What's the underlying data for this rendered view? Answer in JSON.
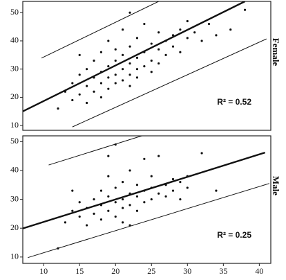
{
  "chart_data": [
    {
      "type": "scatter",
      "label": "Female",
      "annotation": "R² = 0.52",
      "xlim": [
        7.1,
        41.6
      ],
      "ylim": [
        8.3,
        54
      ],
      "yticks": [
        10,
        20,
        30,
        40,
        50
      ],
      "color": "#111111",
      "x": [
        12,
        13,
        14,
        14,
        15,
        15,
        16,
        16,
        16,
        17,
        17,
        17,
        18,
        18,
        18,
        18,
        19,
        19,
        19,
        19,
        20,
        20,
        20,
        20,
        21,
        21,
        21,
        21,
        22,
        22,
        22,
        22,
        23,
        23,
        23,
        23,
        24,
        24,
        24,
        25,
        25,
        25,
        26,
        26,
        26,
        27,
        27,
        28,
        28,
        29,
        29,
        30,
        30,
        31,
        32,
        33,
        34,
        36,
        38,
        22,
        15
      ],
      "y": [
        16,
        22,
        25,
        19,
        28,
        21,
        30,
        24,
        18,
        27,
        33,
        22,
        29,
        36,
        25,
        20,
        31,
        27,
        40,
        23,
        33,
        28,
        25,
        37,
        30,
        35,
        26,
        44,
        32,
        28,
        38,
        24,
        34,
        30,
        41,
        27,
        36,
        31,
        46,
        33,
        39,
        29,
        37,
        43,
        32,
        40,
        35,
        42,
        38,
        44,
        36,
        41,
        47,
        43,
        40,
        46,
        42,
        44,
        51,
        50,
        35
      ],
      "fit": {
        "x": [
          7.1,
          38
        ],
        "y": [
          15,
          54
        ]
      },
      "bands": [
        {
          "x": [
            9.7,
            26
          ],
          "y": [
            33.9,
            54
          ]
        },
        {
          "x": [
            14,
            41
          ],
          "y": [
            9.5,
            40.7
          ]
        }
      ]
    },
    {
      "type": "scatter",
      "label": "Male",
      "annotation": "R² = 0.25",
      "xlim": [
        7.1,
        41.6
      ],
      "ylim": [
        7.8,
        52
      ],
      "yticks": [
        10,
        20,
        30,
        40,
        50
      ],
      "xticks": [
        10,
        15,
        20,
        25,
        30,
        35,
        40
      ],
      "color": "#111111",
      "x": [
        12,
        13,
        14,
        15,
        15,
        16,
        16,
        17,
        17,
        18,
        18,
        18,
        19,
        19,
        19,
        20,
        20,
        20,
        20,
        21,
        21,
        21,
        21,
        22,
        22,
        22,
        23,
        23,
        23,
        24,
        24,
        24,
        25,
        25,
        25,
        26,
        26,
        27,
        27,
        28,
        28,
        29,
        29,
        30,
        30,
        32,
        34,
        19,
        14,
        22
      ],
      "y": [
        13,
        22,
        26,
        24,
        29,
        27,
        21,
        30,
        25,
        28,
        33,
        23,
        31,
        26,
        38,
        29,
        34,
        24,
        49,
        30,
        27,
        36,
        22,
        32,
        28,
        40,
        31,
        26,
        35,
        33,
        29,
        44,
        34,
        30,
        38,
        32,
        45,
        35,
        31,
        37,
        33,
        36,
        30,
        38,
        34,
        46,
        33,
        45,
        33,
        21
      ],
      "fit": {
        "x": [
          7.1,
          40.8
        ],
        "y": [
          19.9,
          46.2
        ]
      },
      "bands": [
        {
          "x": [
            10.7,
            37
          ],
          "y": [
            41.9,
            62.4
          ]
        },
        {
          "x": [
            7.8,
            41.4
          ],
          "y": [
            9.8,
            35.5
          ]
        }
      ]
    }
  ]
}
